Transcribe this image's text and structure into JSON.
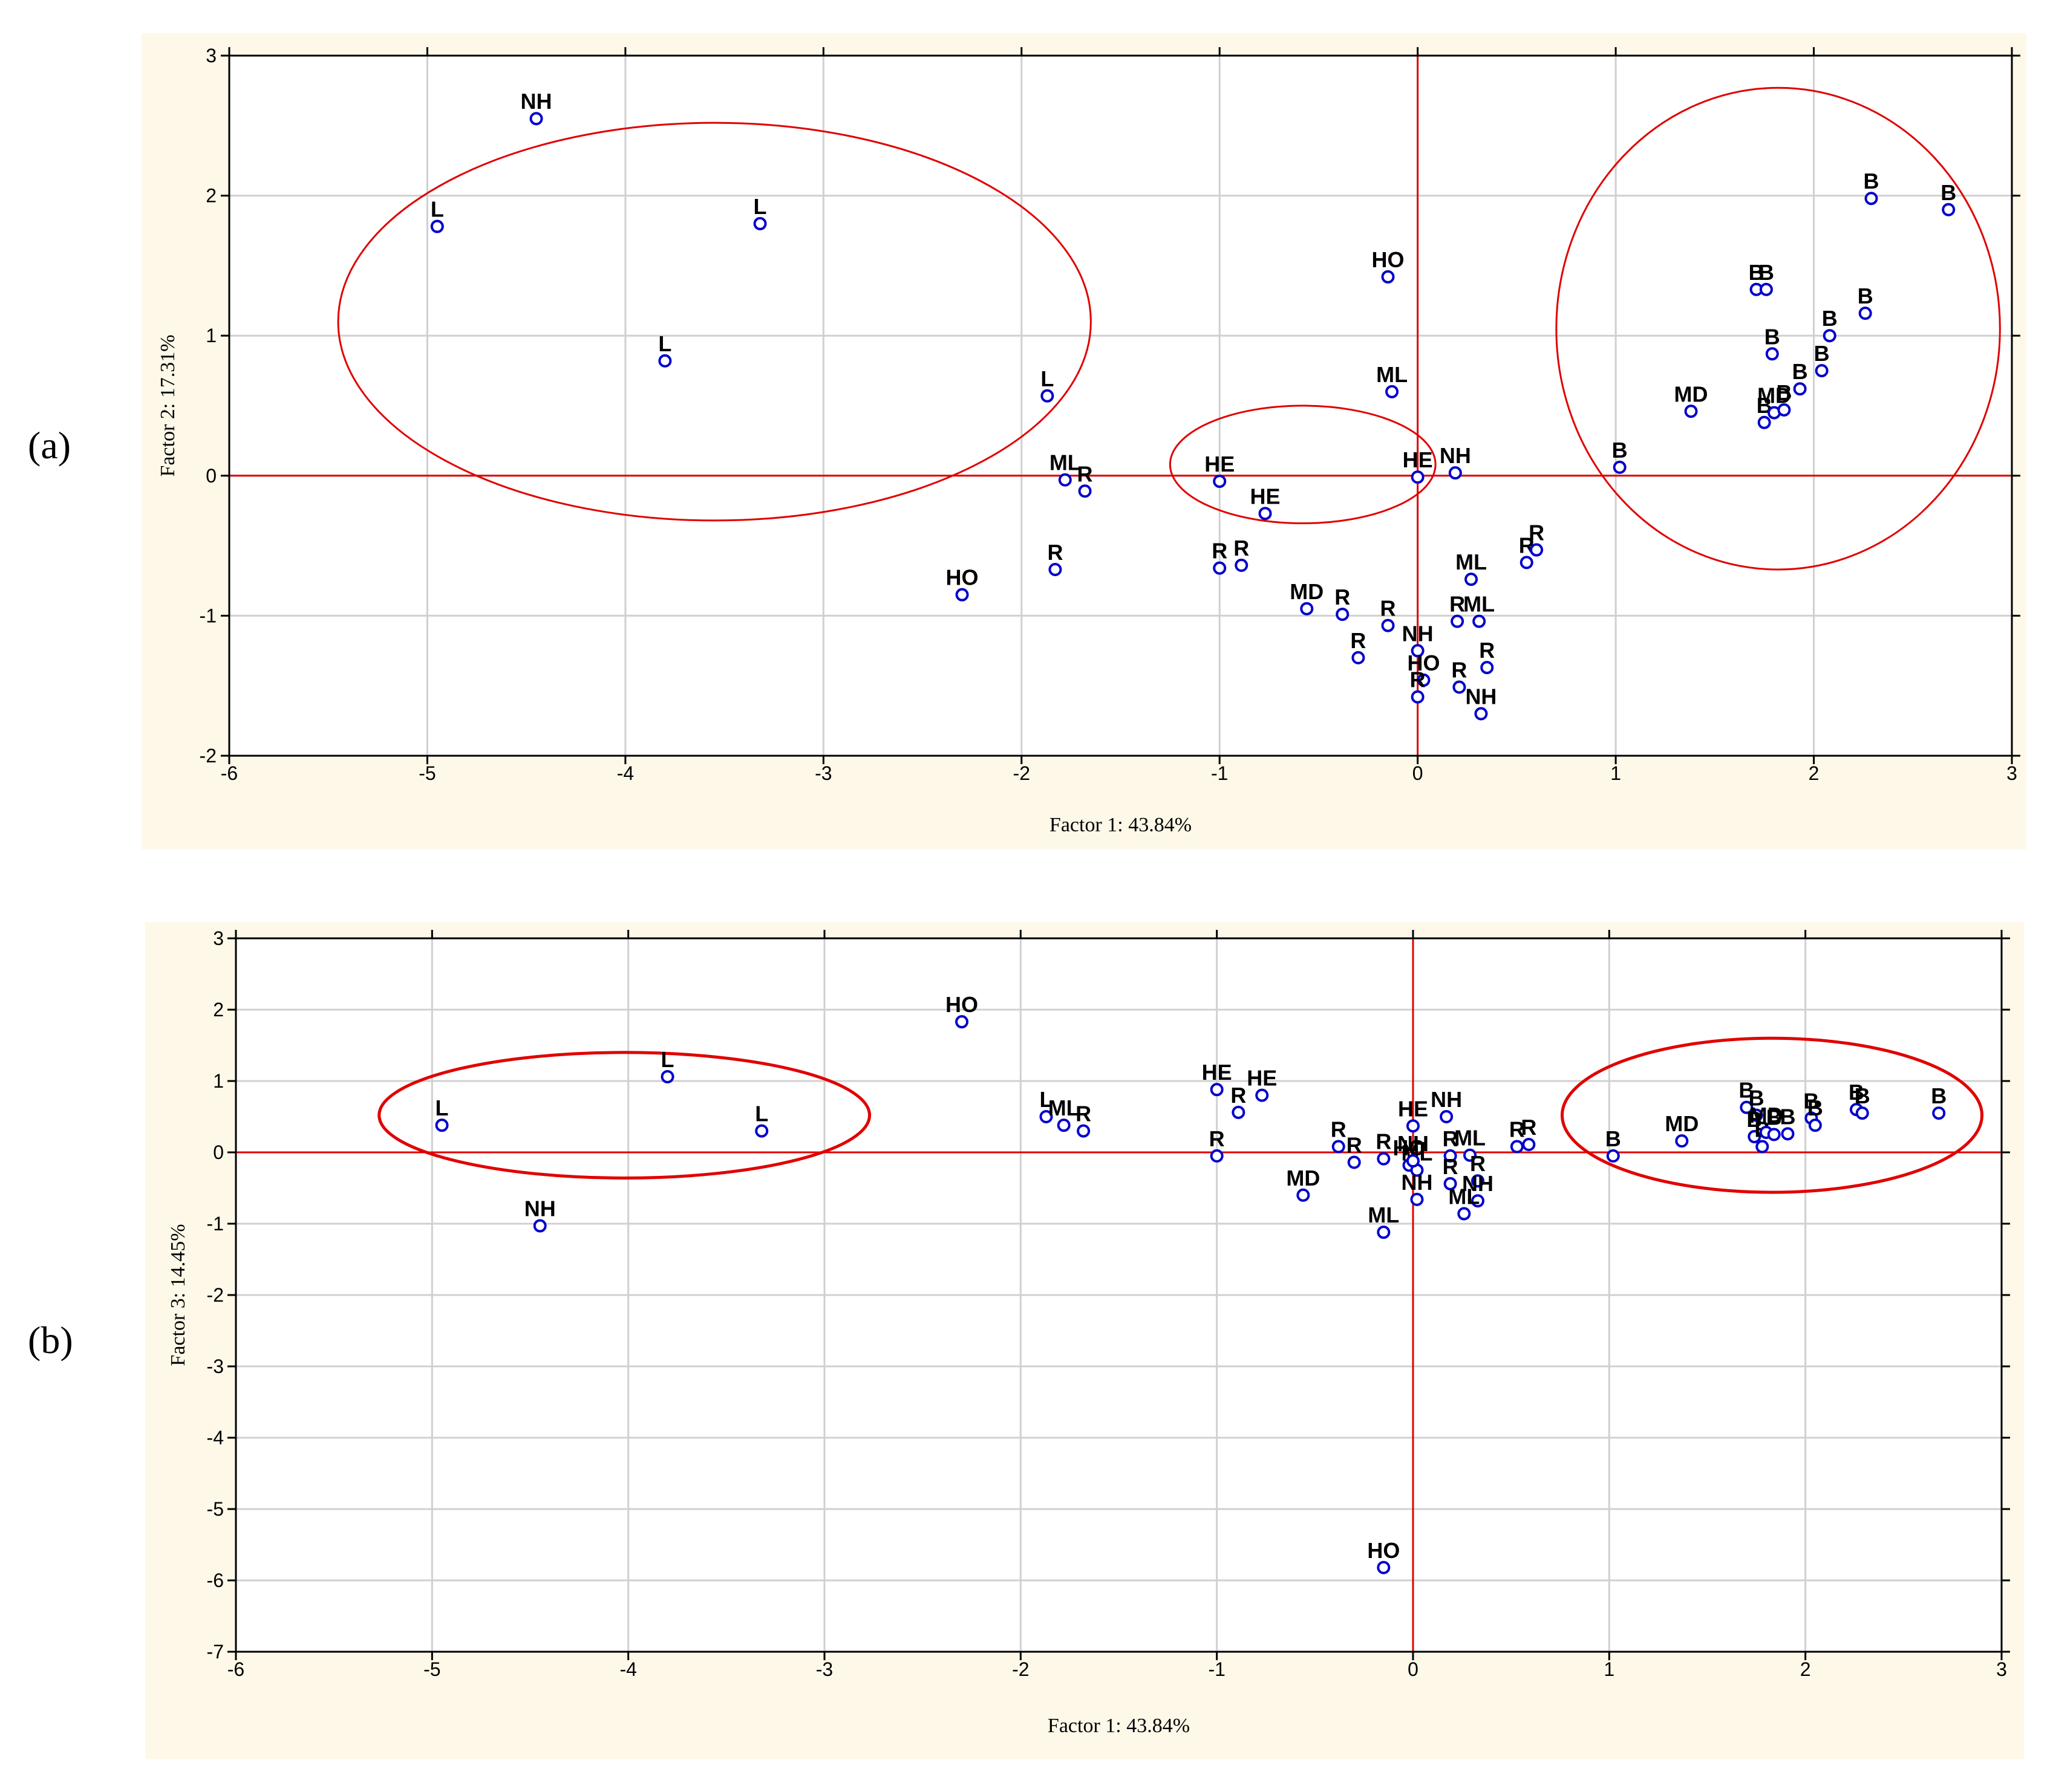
{
  "colors": {
    "background": "#fdf8e8",
    "reference": "#e00000",
    "point": "#0000cc",
    "grid": "#d0d0d0"
  },
  "chart_data": [
    {
      "id": "a",
      "panel_label": "(a)",
      "type": "scatter",
      "title": "",
      "xlabel": "Factor 1: 43.84%",
      "ylabel": "Factor 2: 17.31%",
      "xlim": [
        -6,
        3
      ],
      "ylim": [
        -2,
        3
      ],
      "xticks": [
        -6,
        -5,
        -4,
        -3,
        -2,
        -1,
        0,
        1,
        2,
        3
      ],
      "yticks": [
        -2,
        -1,
        0,
        1,
        2,
        3
      ],
      "tick_labels_x": [
        "-6",
        "-5",
        "-4",
        "-3",
        "-2",
        "-1",
        "0",
        "1",
        "2",
        "3"
      ],
      "tick_labels_y": [
        "-2",
        "-1",
        "0",
        "1",
        "2",
        "3"
      ],
      "grid": true,
      "reference_lines": {
        "x": 0,
        "y": 0
      },
      "points": [
        {
          "x": -4.45,
          "y": 2.55,
          "label": "NH"
        },
        {
          "x": -4.95,
          "y": 1.78,
          "label": "L"
        },
        {
          "x": -3.32,
          "y": 1.8,
          "label": "L"
        },
        {
          "x": -3.8,
          "y": 0.82,
          "label": "L"
        },
        {
          "x": -1.87,
          "y": 0.57,
          "label": "L"
        },
        {
          "x": -1.78,
          "y": -0.03,
          "label": "ML"
        },
        {
          "x": -1.68,
          "y": -0.11,
          "label": "R"
        },
        {
          "x": -2.3,
          "y": -0.85,
          "label": "HO"
        },
        {
          "x": -1.83,
          "y": -0.67,
          "label": "R"
        },
        {
          "x": -1.0,
          "y": -0.04,
          "label": "HE"
        },
        {
          "x": -0.77,
          "y": -0.27,
          "label": "HE"
        },
        {
          "x": -1.0,
          "y": -0.66,
          "label": "R"
        },
        {
          "x": -0.89,
          "y": -0.64,
          "label": "R"
        },
        {
          "x": -0.15,
          "y": 1.42,
          "label": "HO"
        },
        {
          "x": -0.13,
          "y": 0.6,
          "label": "ML"
        },
        {
          "x": 0.0,
          "y": -0.01,
          "label": "HE"
        },
        {
          "x": 0.19,
          "y": 0.02,
          "label": "NH"
        },
        {
          "x": -0.56,
          "y": -0.95,
          "label": "MD"
        },
        {
          "x": -0.38,
          "y": -0.99,
          "label": "R"
        },
        {
          "x": -0.15,
          "y": -1.07,
          "label": "R"
        },
        {
          "x": -0.3,
          "y": -1.3,
          "label": "R"
        },
        {
          "x": 0.0,
          "y": -1.25,
          "label": "NH"
        },
        {
          "x": 0.03,
          "y": -1.46,
          "label": "HO"
        },
        {
          "x": 0.0,
          "y": -1.58,
          "label": "R"
        },
        {
          "x": 0.2,
          "y": -1.04,
          "label": "R"
        },
        {
          "x": 0.31,
          "y": -1.04,
          "label": "ML"
        },
        {
          "x": 0.27,
          "y": -0.74,
          "label": "ML"
        },
        {
          "x": 0.35,
          "y": -1.37,
          "label": "R"
        },
        {
          "x": 0.21,
          "y": -1.51,
          "label": "R"
        },
        {
          "x": 0.32,
          "y": -1.7,
          "label": "NH"
        },
        {
          "x": 0.55,
          "y": -0.62,
          "label": "R"
        },
        {
          "x": 0.6,
          "y": -0.53,
          "label": "R"
        },
        {
          "x": 1.02,
          "y": 0.06,
          "label": "B"
        },
        {
          "x": 1.38,
          "y": 0.46,
          "label": "MD"
        },
        {
          "x": 1.75,
          "y": 0.38,
          "label": "B"
        },
        {
          "x": 1.8,
          "y": 0.45,
          "label": "MD"
        },
        {
          "x": 1.85,
          "y": 0.47,
          "label": "B"
        },
        {
          "x": 1.93,
          "y": 0.62,
          "label": "B"
        },
        {
          "x": 1.79,
          "y": 0.87,
          "label": "B"
        },
        {
          "x": 2.04,
          "y": 0.75,
          "label": "B"
        },
        {
          "x": 2.08,
          "y": 1.0,
          "label": "B"
        },
        {
          "x": 1.71,
          "y": 1.33,
          "label": "B"
        },
        {
          "x": 1.76,
          "y": 1.33,
          "label": "B"
        },
        {
          "x": 2.26,
          "y": 1.16,
          "label": "B"
        },
        {
          "x": 2.29,
          "y": 1.98,
          "label": "B"
        },
        {
          "x": 2.68,
          "y": 1.9,
          "label": "B"
        }
      ],
      "ellipses": [
        {
          "cx": -3.55,
          "cy": 1.1,
          "rx": 1.9,
          "ry": 1.42
        },
        {
          "cx": -0.58,
          "cy": 0.08,
          "rx": 0.67,
          "ry": 0.42
        },
        {
          "cx": 1.82,
          "cy": 1.05,
          "rx": 1.12,
          "ry": 1.72
        }
      ]
    },
    {
      "id": "b",
      "panel_label": "(b)",
      "type": "scatter",
      "title": "",
      "xlabel": "Factor 1: 43.84%",
      "ylabel": "Factor 3: 14.45%",
      "xlim": [
        -6,
        3
      ],
      "ylim": [
        -7,
        3
      ],
      "xticks": [
        -6,
        -5,
        -4,
        -3,
        -2,
        -1,
        0,
        1,
        2,
        3
      ],
      "yticks": [
        -7,
        -6,
        -5,
        -4,
        -3,
        -2,
        -1,
        0,
        1,
        2,
        3
      ],
      "tick_labels_x": [
        "-6",
        "-5",
        "-4",
        "-3",
        "-2",
        "-1",
        "0",
        "1",
        "2",
        "3"
      ],
      "tick_labels_y": [
        "-7",
        "-6",
        "-5",
        "-4",
        "-3",
        "-2",
        "-1",
        "0",
        "1",
        "2",
        "3"
      ],
      "grid": true,
      "reference_lines": {
        "x": 0,
        "y": 0
      },
      "points": [
        {
          "x": -4.95,
          "y": 0.38,
          "label": "L"
        },
        {
          "x": -3.8,
          "y": 1.06,
          "label": "L"
        },
        {
          "x": -3.32,
          "y": 0.3,
          "label": "L"
        },
        {
          "x": -4.45,
          "y": -1.03,
          "label": "NH"
        },
        {
          "x": -2.3,
          "y": 1.83,
          "label": "HO"
        },
        {
          "x": -1.87,
          "y": 0.5,
          "label": "L"
        },
        {
          "x": -1.78,
          "y": 0.38,
          "label": "ML"
        },
        {
          "x": -1.68,
          "y": 0.3,
          "label": "R"
        },
        {
          "x": -1.0,
          "y": 0.88,
          "label": "HE"
        },
        {
          "x": -0.77,
          "y": 0.8,
          "label": "HE"
        },
        {
          "x": -0.89,
          "y": 0.56,
          "label": "R"
        },
        {
          "x": -1.0,
          "y": -0.05,
          "label": "R"
        },
        {
          "x": -0.38,
          "y": 0.08,
          "label": "R"
        },
        {
          "x": -0.3,
          "y": -0.14,
          "label": "R"
        },
        {
          "x": -0.56,
          "y": -0.6,
          "label": "MD"
        },
        {
          "x": -0.15,
          "y": -0.09,
          "label": "R"
        },
        {
          "x": 0.0,
          "y": 0.37,
          "label": "HE"
        },
        {
          "x": 0.17,
          "y": 0.5,
          "label": "NH"
        },
        {
          "x": -0.02,
          "y": -0.18,
          "label": "HO"
        },
        {
          "x": 0.02,
          "y": -0.25,
          "label": "ML"
        },
        {
          "x": 0.0,
          "y": -0.12,
          "label": "NH"
        },
        {
          "x": 0.02,
          "y": -0.66,
          "label": "NH"
        },
        {
          "x": -0.15,
          "y": -1.12,
          "label": "ML"
        },
        {
          "x": 0.19,
          "y": -0.05,
          "label": "R"
        },
        {
          "x": 0.29,
          "y": -0.04,
          "label": "ML"
        },
        {
          "x": 0.19,
          "y": -0.44,
          "label": "R"
        },
        {
          "x": 0.33,
          "y": -0.4,
          "label": "R"
        },
        {
          "x": 0.33,
          "y": -0.68,
          "label": "NH"
        },
        {
          "x": 0.26,
          "y": -0.86,
          "label": "ML"
        },
        {
          "x": 0.53,
          "y": 0.08,
          "label": "R"
        },
        {
          "x": 0.59,
          "y": 0.11,
          "label": "R"
        },
        {
          "x": -0.15,
          "y": -5.82,
          "label": "HO"
        },
        {
          "x": 1.02,
          "y": -0.05,
          "label": "B"
        },
        {
          "x": 1.37,
          "y": 0.16,
          "label": "MD"
        },
        {
          "x": 1.7,
          "y": 0.63,
          "label": "B"
        },
        {
          "x": 1.75,
          "y": 0.52,
          "label": "B"
        },
        {
          "x": 1.74,
          "y": 0.22,
          "label": "B"
        },
        {
          "x": 1.78,
          "y": 0.08,
          "label": "B"
        },
        {
          "x": 1.8,
          "y": 0.28,
          "label": "MD"
        },
        {
          "x": 1.84,
          "y": 0.25,
          "label": "B"
        },
        {
          "x": 1.91,
          "y": 0.26,
          "label": "B"
        },
        {
          "x": 2.03,
          "y": 0.48,
          "label": "B"
        },
        {
          "x": 2.05,
          "y": 0.38,
          "label": "B"
        },
        {
          "x": 2.26,
          "y": 0.6,
          "label": "B"
        },
        {
          "x": 2.29,
          "y": 0.55,
          "label": "B"
        },
        {
          "x": 2.68,
          "y": 0.55,
          "label": "B"
        }
      ],
      "ellipses": [
        {
          "cx": -4.02,
          "cy": 0.52,
          "rx": 1.25,
          "ry": 0.88
        },
        {
          "cx": 1.83,
          "cy": 0.52,
          "rx": 1.07,
          "ry": 1.08
        }
      ]
    }
  ]
}
